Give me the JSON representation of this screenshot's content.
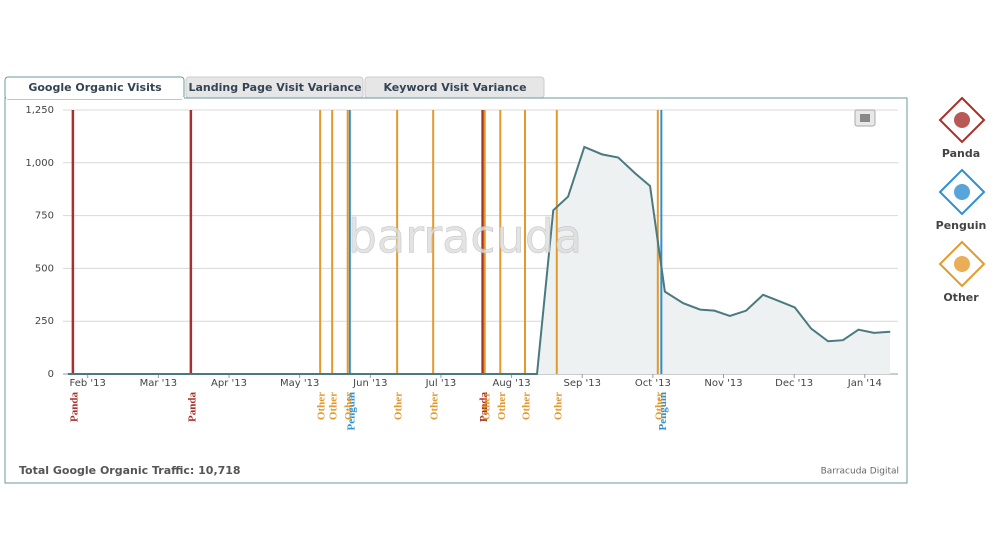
{
  "tabs": [
    "Google Organic Visits",
    "Landing Page Visit Variance",
    "Keyword Visit Variance"
  ],
  "chart_data": {
    "type": "area",
    "watermark": "barracuda",
    "x": [
      0.72,
      7.36,
      7.59,
      7.8,
      8.03,
      8.28,
      8.51,
      8.75,
      8.96,
      9.17,
      9.43,
      9.67,
      9.87,
      10.09,
      10.32,
      10.56,
      10.79,
      11.01,
      11.24,
      11.48,
      11.69,
      11.91,
      12.13,
      12.36
    ],
    "values": [
      0,
      0,
      775,
      840,
      1075,
      1040,
      1025,
      950,
      890,
      390,
      335,
      305,
      300,
      275,
      300,
      375,
      345,
      315,
      215,
      155,
      160,
      210,
      195,
      200
    ],
    "color": "#4a7a80",
    "fill": "#edf1f1",
    "xlim": [
      0.65,
      12.47
    ],
    "ylim": [
      0,
      1250
    ],
    "xticks": [
      {
        "value": 1,
        "label": "Feb '13"
      },
      {
        "value": 2,
        "label": "Mar '13"
      },
      {
        "value": 3,
        "label": "Apr '13"
      },
      {
        "value": 4,
        "label": "May '13"
      },
      {
        "value": 5,
        "label": "Jun '13"
      },
      {
        "value": 6,
        "label": "Jul '13"
      },
      {
        "value": 7,
        "label": "Aug '13"
      },
      {
        "value": 8,
        "label": "Sep '13"
      },
      {
        "value": 9,
        "label": "Oct '13"
      },
      {
        "value": 10,
        "label": "Nov '13"
      },
      {
        "value": 11,
        "label": "Dec '13"
      },
      {
        "value": 12,
        "label": "Jan '14"
      }
    ],
    "yticks": [
      0,
      250,
      500,
      750,
      {
        "value": 1000,
        "label": "1,000"
      },
      {
        "value": 1250,
        "label": "1,250"
      }
    ],
    "grid": true,
    "events": [
      {
        "name": "Panda",
        "color": "#a8302a",
        "x": [
          0.79,
          2.46,
          6.59
        ]
      },
      {
        "name": "Penguin",
        "color": "#2f8fd0",
        "x": [
          4.71,
          9.12
        ]
      },
      {
        "name": "Other",
        "color": "#e39a2c",
        "x": [
          4.29,
          4.46,
          4.68,
          5.38,
          5.89,
          6.62,
          6.84,
          7.19,
          7.64,
          9.07
        ]
      }
    ]
  },
  "footer": {
    "total": "Total Google Organic Traffic: 10,718",
    "credit": "Barracuda Digital"
  }
}
